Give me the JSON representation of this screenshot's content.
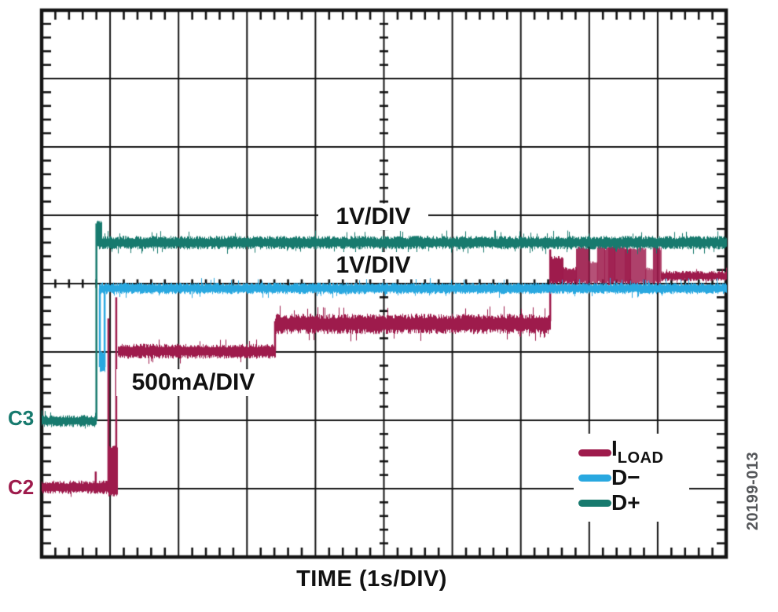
{
  "figure": {
    "watermark": "20199-013"
  },
  "chart_data": {
    "type": "line",
    "title": "",
    "xlabel": "TIME (1s/DIV)",
    "ylabel": "",
    "x_divisions": 10,
    "y_divisions": 8,
    "x_units_per_div": "1s",
    "grid_style": "oscilloscope graticule: 10x8 major divisions, minor ticks every 0.2 div on borders and center axes",
    "background": "#ffffff",
    "grid_color": "#141414",
    "legend_position": "lower right inside grid",
    "draw_order": [
      0,
      2,
      1
    ],
    "note": "segment coordinates are in graticule divisions; x measured from left edge, y from bottom edge",
    "series": [
      {
        "name": "ILOAD",
        "legend_main": "I",
        "legend_sub": "LOAD",
        "color": "#9e1b4c",
        "scale": "500mA/DIV",
        "channel_marker": "C2",
        "description": "load current staircase: 1.0 div baseline, steps at ~1.0s, ~3.4s, ~7.4s, settles ~4.1 div",
        "segments": [
          {
            "kind": "band",
            "x": [
              0,
              0.98
            ],
            "y": 1.02,
            "amp": 0.1
          },
          {
            "kind": "vline",
            "x": 0.79,
            "y": [
              1.02,
              1.25
            ]
          },
          {
            "kind": "vline",
            "x": 0.975,
            "y": [
              1.02,
              3.49
            ]
          },
          {
            "kind": "vline",
            "x": 1.09,
            "y": [
              1.02,
              3.8
            ]
          },
          {
            "kind": "blob",
            "x": [
              0.975,
              1.11
            ],
            "y": [
              0.92,
              1.6
            ]
          },
          {
            "kind": "band",
            "x": [
              1.11,
              3.41
            ],
            "y": 3.01,
            "amp": 0.11
          },
          {
            "kind": "vline",
            "x": 3.41,
            "y": [
              3.01,
              3.45
            ]
          },
          {
            "kind": "band",
            "x": [
              3.41,
              7.43
            ],
            "y": 3.41,
            "amp": 0.15
          },
          {
            "kind": "vline",
            "x": 7.43,
            "y": [
              3.45,
              4.5
            ]
          },
          {
            "kind": "burst",
            "x": [
              7.43,
              9.05
            ],
            "y": [
              4.07,
              4.56
            ]
          },
          {
            "kind": "band",
            "x": [
              9.05,
              10
            ],
            "y": 4.11,
            "amp": 0.075
          }
        ]
      },
      {
        "name": "D-",
        "legend_main": "D−",
        "legend_sub": "",
        "color": "#29a8e0",
        "scale": "1V/DIV",
        "channel_marker": "",
        "description": "D- line: appears at ~0.85s with brief downward glitch of ~1.2 div, then flat at 3.93 div",
        "segments": [
          {
            "kind": "vline",
            "x": 0.85,
            "y": [
              2.78,
              3.93
            ]
          },
          {
            "kind": "vline",
            "x": 0.92,
            "y": [
              2.78,
              3.93
            ]
          },
          {
            "kind": "blob",
            "x": [
              0.845,
              0.925
            ],
            "y": [
              2.73,
              2.98
            ]
          },
          {
            "kind": "band",
            "x": [
              0.835,
              10
            ],
            "y": 3.93,
            "amp": 0.085
          }
        ]
      },
      {
        "name": "D+",
        "legend_main": "D+",
        "legend_sub": "",
        "color": "#177a6e",
        "scale": "1V/DIV",
        "channel_marker": "C3",
        "description": "D+ line: baseline 2.0 div, rises at ~0.8s with small overshoot, flat at 4.6 div",
        "segments": [
          {
            "kind": "band",
            "x": [
              0,
              0.8
            ],
            "y": 1.99,
            "amp": 0.09
          },
          {
            "kind": "vline",
            "x": 0.8,
            "y": [
              1.99,
              4.88
            ]
          },
          {
            "kind": "blob",
            "x": [
              0.805,
              0.875
            ],
            "y": [
              4.58,
              4.89
            ]
          },
          {
            "kind": "band",
            "x": [
              0.83,
              10
            ],
            "y": 4.6,
            "amp": 0.1
          }
        ]
      }
    ]
  }
}
